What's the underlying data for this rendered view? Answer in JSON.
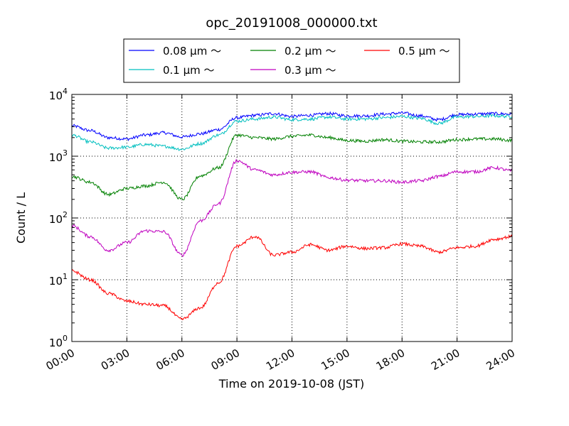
{
  "chart_data": {
    "type": "line",
    "title": "opc_20191008_000000.txt",
    "xlabel": "Time on 2019-10-08 (JST)",
    "ylabel": "Count / L",
    "xlim": [
      "2019-10-08 00:00",
      "2019-10-09 00:00"
    ],
    "ylim": [
      1,
      10000
    ],
    "yscale": "log",
    "grid": true,
    "legend_placement": "top-center",
    "xticks": [
      "00:00",
      "03:00",
      "06:00",
      "09:00",
      "12:00",
      "15:00",
      "18:00",
      "21:00",
      "24:00"
    ],
    "yticks": [
      {
        "base": "10",
        "exp": "0"
      },
      {
        "base": "10",
        "exp": "1"
      },
      {
        "base": "10",
        "exp": "2"
      },
      {
        "base": "10",
        "exp": "3"
      },
      {
        "base": "10",
        "exp": "4"
      }
    ],
    "x": [
      "00:00",
      "01:00",
      "02:00",
      "03:00",
      "04:00",
      "05:00",
      "06:00",
      "07:00",
      "08:00",
      "09:00",
      "10:00",
      "11:00",
      "12:00",
      "13:00",
      "14:00",
      "15:00",
      "16:00",
      "17:00",
      "18:00",
      "19:00",
      "20:00",
      "21:00",
      "22:00",
      "23:00",
      "24:00"
    ],
    "series": [
      {
        "name": "0.08 μm ～",
        "color": "#0000ff",
        "values": [
          3100,
          2600,
          2000,
          1900,
          2200,
          2400,
          2050,
          2300,
          2700,
          4200,
          4600,
          4900,
          4400,
          4600,
          4900,
          4500,
          4500,
          4800,
          5000,
          4500,
          3900,
          4700,
          4800,
          4900,
          4800
        ]
      },
      {
        "name": "0.1 μm ～",
        "color": "#00bfbf",
        "values": [
          2200,
          1700,
          1350,
          1400,
          1550,
          1450,
          1300,
          1600,
          2200,
          3700,
          4000,
          4300,
          3900,
          4000,
          4300,
          4000,
          4000,
          4200,
          4400,
          4100,
          3400,
          4300,
          4400,
          4500,
          4400
        ]
      },
      {
        "name": "0.2 μm ～",
        "color": "#008000",
        "values": [
          470,
          380,
          240,
          300,
          330,
          380,
          200,
          480,
          650,
          2200,
          2000,
          1900,
          2100,
          2200,
          2000,
          1800,
          1750,
          1850,
          1750,
          1700,
          1700,
          1850,
          1900,
          1900,
          1800
        ]
      },
      {
        "name": "0.3 μm ～",
        "color": "#bf00bf",
        "values": [
          75,
          50,
          30,
          40,
          62,
          60,
          25,
          90,
          170,
          850,
          600,
          500,
          550,
          560,
          450,
          410,
          400,
          400,
          380,
          400,
          470,
          560,
          560,
          650,
          580
        ]
      },
      {
        "name": "0.5 μm ～",
        "color": "#ff0000",
        "values": [
          14,
          10,
          6,
          4.5,
          4,
          3.8,
          2.3,
          3.5,
          9,
          35,
          50,
          25,
          28,
          37,
          30,
          35,
          32,
          33,
          38,
          35,
          28,
          33,
          35,
          45,
          50
        ]
      }
    ]
  }
}
